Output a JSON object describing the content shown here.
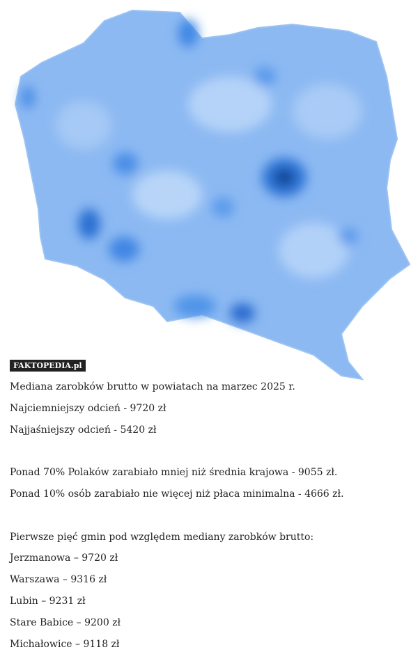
{
  "watermark": "FAKTOPEDIA.pl",
  "paragraphs": [
    [
      "Mediana zarobków brutto w powiatach na marzec 2025 r.",
      "Najciemniejszy odcień - 9720 zł",
      "Najjaśniejszy odcień - 5420 zł"
    ],
    [
      "Ponad 70% Polaków zarabiało mniej niż średnia krajowa - 9055 zł.",
      "Ponad 10% osób zarabiało nie więcej niż płaca minimalna - 4666 zł."
    ],
    [
      "Pierwsze pięć gmin pod względem mediany zarobków brutto:",
      "Jerzmanowa – 9720 zł",
      "Warszawa – 9316 zł",
      "Lubin – 9231 zł",
      "Stare Babice – 9200 zł",
      "Michałowice – 9118 zł"
    ]
  ]
}
